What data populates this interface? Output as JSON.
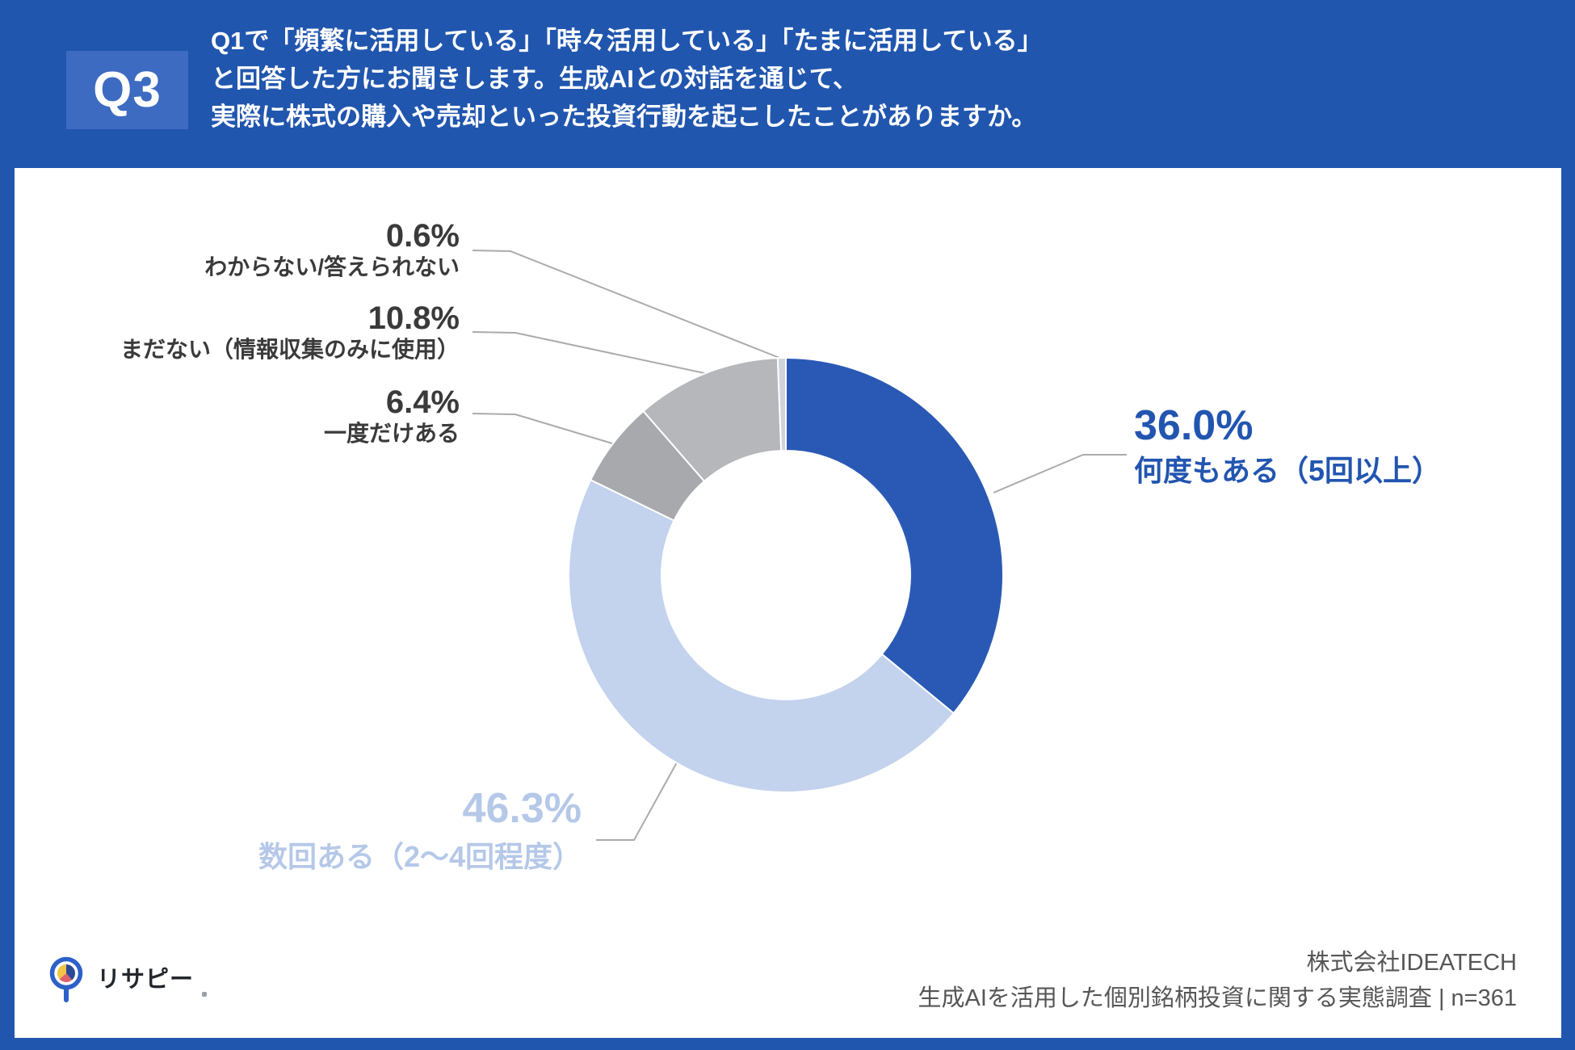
{
  "header": {
    "badge": "Q3",
    "question_lines": [
      "Q1で「頻繁に活用している」「時々活用している」「たまに活用している」",
      "と回答した方にお聞きします。生成AIとの対話を通じて、",
      "実際に株式の購入や売却といった投資行動を起こしたことがありますか。"
    ]
  },
  "chart_data": {
    "type": "pie",
    "subtype": "donut",
    "title": "生成AIとの対話を通じて、実際に株式の購入や売却といった投資行動を起こしたことがありますか。",
    "start_angle_deg": 0,
    "direction": "clockwise",
    "legend_position": "callouts",
    "segments": [
      {
        "label": "何度もある（5回以上）",
        "value": 36.0,
        "pct_text": "36.0%",
        "color": "#2A59B5",
        "label_color": "#2255B0"
      },
      {
        "label": "数回ある（2〜4回程度）",
        "value": 46.3,
        "pct_text": "46.3%",
        "color": "#C3D2ED",
        "label_color": "#B5C8E8"
      },
      {
        "label": "一度だけある",
        "value": 6.4,
        "pct_text": "6.4%",
        "color": "#A7A9AC",
        "label_color": "#3A3A3A"
      },
      {
        "label": "まだない（情報収集のみに使用）",
        "value": 10.8,
        "pct_text": "10.8%",
        "color": "#B5B7BB",
        "label_color": "#3A3A3A"
      },
      {
        "label": "わからない/答えられない",
        "value": 0.6,
        "pct_text": "0.6%",
        "color": "#D0D4DA",
        "label_color": "#3A3A3A"
      }
    ]
  },
  "footer": {
    "logo_text": "リサピー",
    "company": "株式会社IDEATECH",
    "survey": "生成AIを活用した個別銘柄投資に関する実態調査 | n=361"
  },
  "colors": {
    "background_blue": "#2156AE",
    "badge_blue": "#3D6BC1",
    "panel_white": "#FFFFFF",
    "leader_line": "#ABABAB",
    "footer_text": "#565656",
    "logo_ring_blue": "#2D60C8",
    "logo_pie_navy": "#2B4A96",
    "logo_pie_red": "#E0606B",
    "logo_pie_yellow": "#F2C544"
  }
}
